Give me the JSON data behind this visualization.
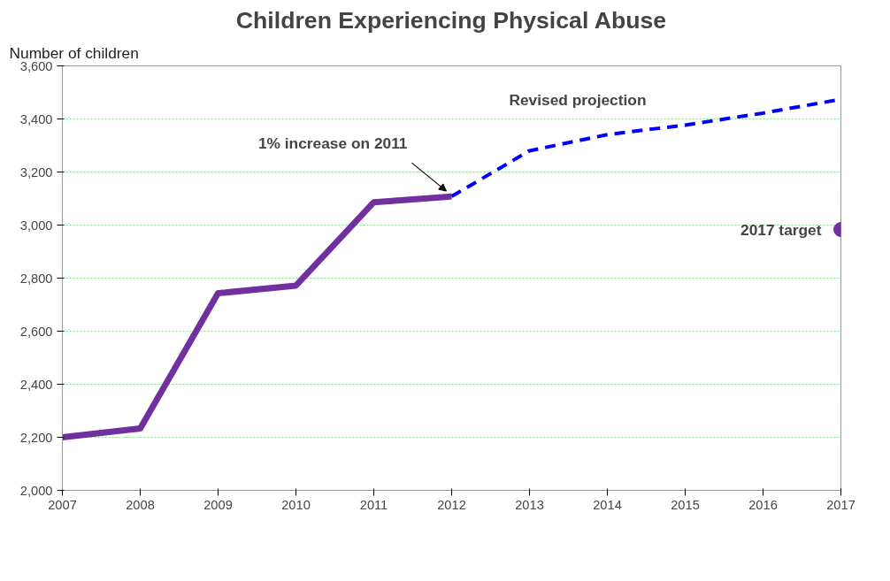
{
  "chart_data": {
    "type": "line",
    "title": "Children Experiencing Physical Abuse",
    "ylabel": "Number of children",
    "x": [
      2007,
      2008,
      2009,
      2010,
      2011,
      2012
    ],
    "series": [
      {
        "color": "#7030a0",
        "values": [
          2200,
          2233,
          2743,
          2772,
          3086,
          3108
        ],
        "line_style": "solid"
      },
      {
        "name": "Revised projection",
        "color": "#0000ff",
        "x": [
          2012,
          2013,
          2014,
          2015,
          2016,
          2017
        ],
        "values": [
          3108,
          3280,
          3341,
          3377,
          3422,
          3474
        ],
        "line_style": "dashed"
      },
      {
        "name": "2017 target",
        "type": "scatter",
        "marker": "circle",
        "color": "#7030a0",
        "x": [
          2017
        ],
        "values": [
          2983
        ]
      }
    ],
    "annotations": [
      {
        "text": "1% increase on 2011",
        "x": 2012,
        "y": 3108
      }
    ],
    "xlim": [
      2007,
      2017
    ],
    "xticks": [
      2007,
      2008,
      2009,
      2010,
      2011,
      2012,
      2013,
      2014,
      2015,
      2016,
      2017
    ],
    "ylim": [
      2000,
      3600
    ],
    "yticks": [
      {
        "value": 2000,
        "label": "2,000"
      },
      {
        "value": 2200,
        "label": "2,200"
      },
      {
        "value": 2400,
        "label": "2,400"
      },
      {
        "value": 2600,
        "label": "2,600"
      },
      {
        "value": 2800,
        "label": "2,800"
      },
      {
        "value": 3000,
        "label": "3,000"
      },
      {
        "value": 3200,
        "label": "3,200"
      },
      {
        "value": 3400,
        "label": "3,400"
      },
      {
        "value": 3600,
        "label": "3,600"
      }
    ],
    "grid": "y"
  }
}
